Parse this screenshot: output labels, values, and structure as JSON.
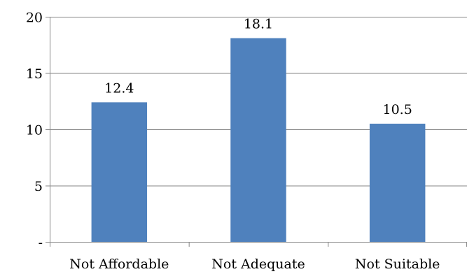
{
  "chart_data": {
    "type": "bar",
    "title": "",
    "xlabel": "",
    "ylabel": "",
    "categories": [
      "Not Affordable",
      "Not Adequate",
      "Not Suitable"
    ],
    "values": [
      12.4,
      18.1,
      10.5
    ],
    "data_labels": [
      "12.4",
      "18.1",
      "10.5"
    ],
    "ylim": [
      0,
      20
    ],
    "yticks": [
      0,
      5,
      10,
      15,
      20
    ],
    "ytick_labels": [
      "-",
      "5",
      "10",
      "15",
      "20"
    ],
    "grid": true,
    "bar_color": "#4f81bd",
    "grid_color": "#868686"
  }
}
